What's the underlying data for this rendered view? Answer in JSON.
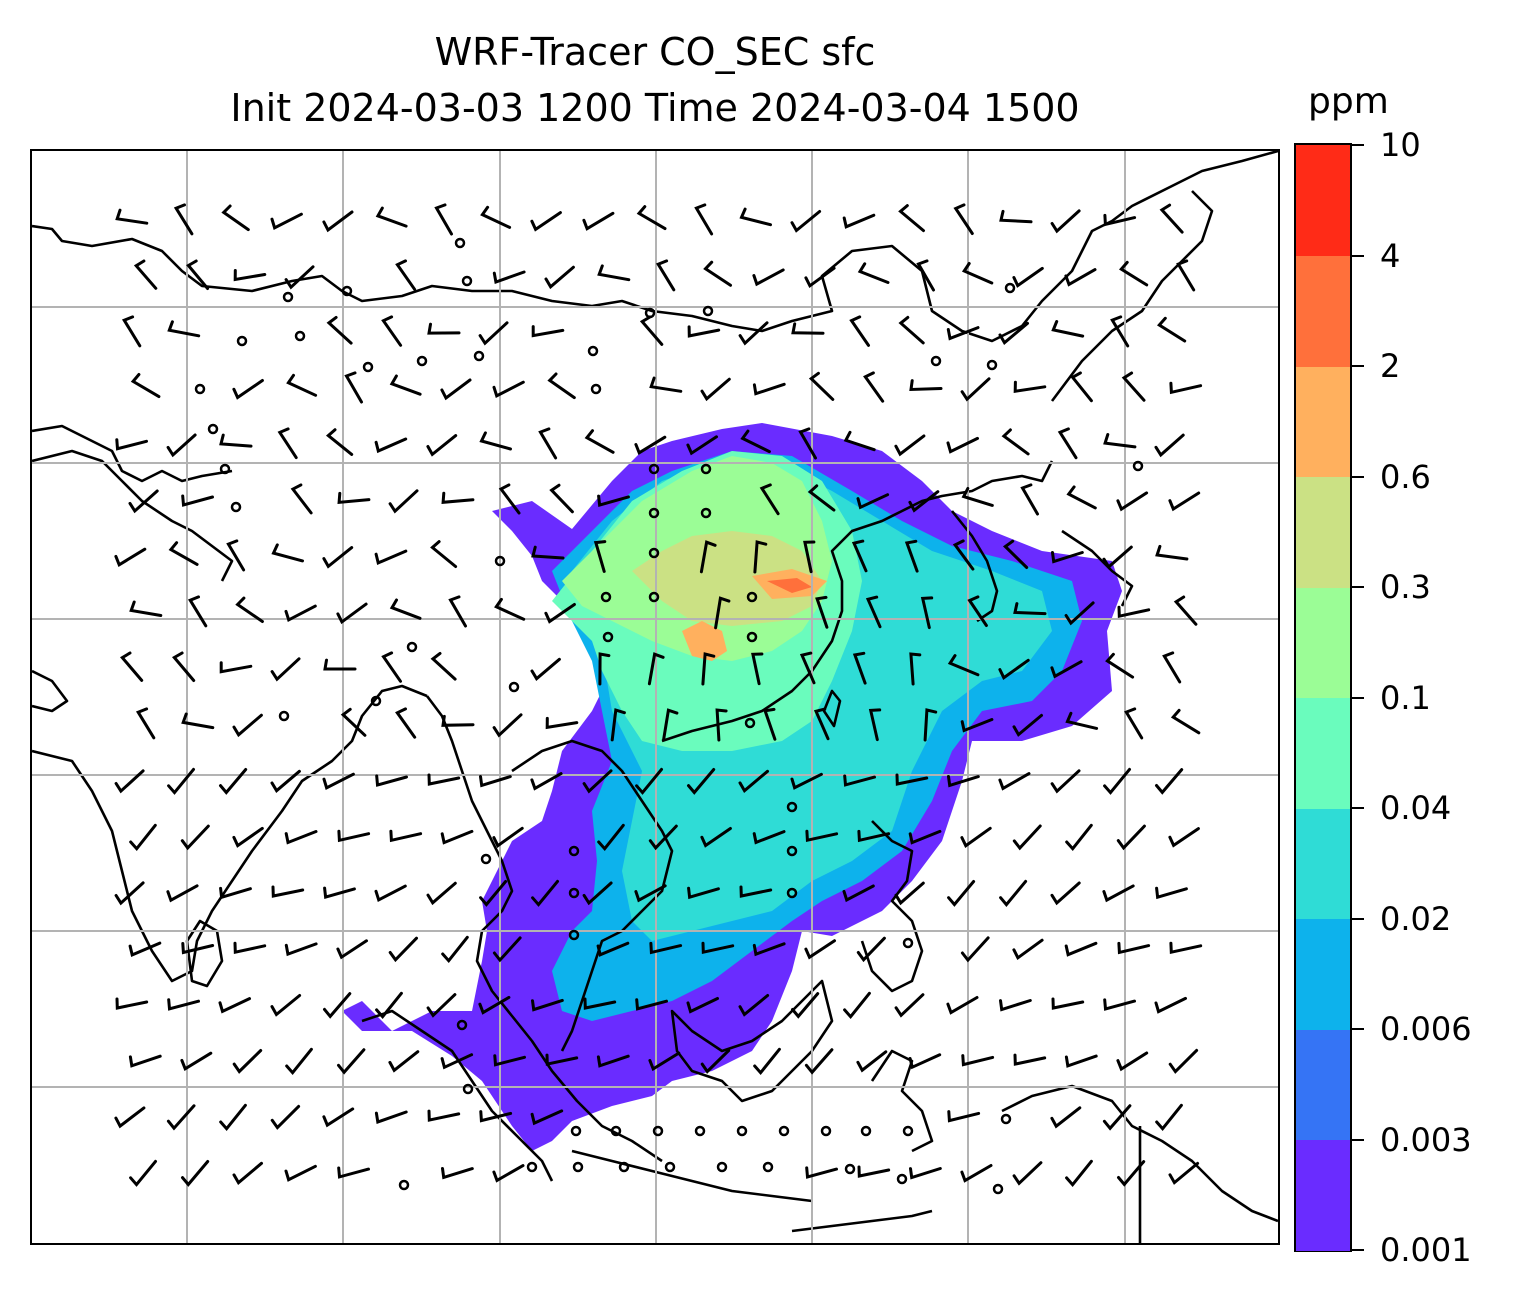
{
  "title": {
    "line1": "WRF-Tracer CO_SEC sfc",
    "line2": "Init 2024-03-03 1200 Time 2024-03-04 1500"
  },
  "colorbar": {
    "unit": "ppm",
    "levels": [
      "0.001",
      "0.003",
      "0.006",
      "0.02",
      "0.04",
      "0.1",
      "0.3",
      "0.6",
      "2",
      "4",
      "10"
    ],
    "colors": [
      "#6a2cff",
      "#3574f5",
      "#0db2ec",
      "#2fdcd6",
      "#6afcbd",
      "#9bfd96",
      "#cbe184",
      "#ffb05e",
      "#ff703b",
      "#ff2b17"
    ]
  },
  "map": {
    "gridlines": true,
    "wind_barbs": true,
    "coastline_color": "#000000",
    "gridline_color": "#b3b3b3"
  }
}
